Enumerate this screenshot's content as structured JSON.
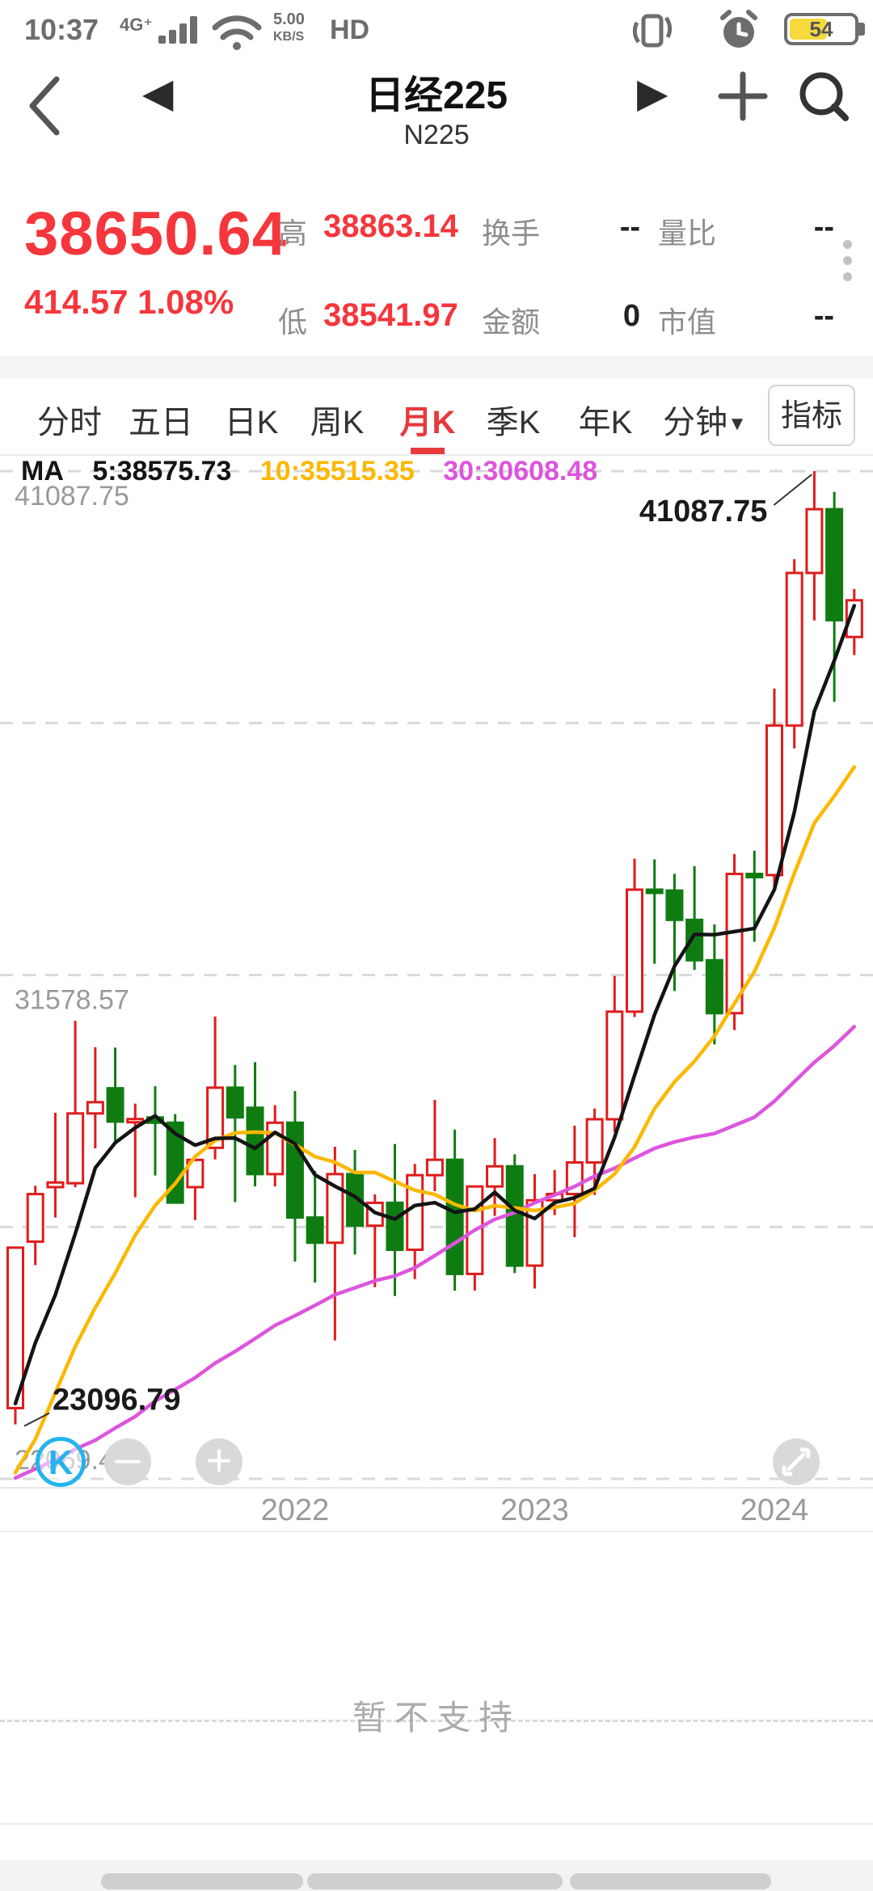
{
  "status_bar": {
    "time": "10:37",
    "network": "4G⁺",
    "speed_top": "5.00",
    "speed_bottom": "KB/S",
    "hd": "HD",
    "battery_pct": "54"
  },
  "header": {
    "title": "日经225",
    "subtitle": "N225"
  },
  "quote": {
    "price": "38650.64",
    "change": "414.57  1.08%",
    "high_label": "高",
    "high": "38863.14",
    "low_label": "低",
    "low": "38541.97",
    "turnover_label": "换手",
    "turnover": "--",
    "amount_label": "金额",
    "amount": "0",
    "volume_ratio_label": "量比",
    "volume_ratio": "--",
    "market_cap_label": "市值",
    "market_cap": "--"
  },
  "tabs": {
    "items": [
      "分时",
      "五日",
      "日K",
      "周K",
      "月K",
      "季K",
      "年K"
    ],
    "selected": "月K",
    "minute_label": "分钟",
    "indicator_label": "指标"
  },
  "footer": {
    "unsupported": "暂不支持"
  },
  "colors": {
    "red": "#f5363c",
    "candle_up": "#de1c1c",
    "candle_down": "#0f7c12",
    "ma5": "#141414",
    "ma10": "#fcb800",
    "ma30": "#dd55dd",
    "grid": "#d9d9d9",
    "axis_text": "#9a9a9a",
    "annotation_text": "#1a1a1a"
  },
  "chart_data": {
    "type": "candlestick",
    "title": "日经225 (N225) 月K",
    "ma_legend": {
      "prefix": "MA",
      "ma5": "5:38575.73",
      "ma10": "10:35515.35",
      "ma30": "30:30608.48"
    },
    "y_axis": {
      "max": 41087.75,
      "min": 22069.4,
      "gridlines": [
        41087.75,
        36333.16,
        31578.57,
        26823.98,
        22069.4
      ],
      "labels": [
        {
          "value": 41087.75,
          "text": "41087.75",
          "pos": "below"
        },
        {
          "value": 31578.57,
          "text": "31578.57",
          "pos": "below"
        },
        {
          "value": 22069.4,
          "text": "22069.40",
          "pos": "above"
        }
      ]
    },
    "x_ticks": [
      {
        "label": "2022",
        "index": 14
      },
      {
        "label": "2023",
        "index": 26
      },
      {
        "label": "2024",
        "index": 38
      }
    ],
    "annotations": [
      {
        "type": "high",
        "text": "41087.75",
        "index": 40
      },
      {
        "type": "low",
        "text": "23096.79",
        "index": 0
      }
    ],
    "months": [
      "2020-11",
      "2020-12",
      "2021-01",
      "2021-02",
      "2021-03",
      "2021-04",
      "2021-05",
      "2021-06",
      "2021-07",
      "2021-08",
      "2021-09",
      "2021-10",
      "2021-11",
      "2021-12",
      "2022-01",
      "2022-02",
      "2022-03",
      "2022-04",
      "2022-05",
      "2022-06",
      "2022-07",
      "2022-08",
      "2022-09",
      "2022-10",
      "2022-11",
      "2022-12",
      "2023-01",
      "2023-02",
      "2023-03",
      "2023-04",
      "2023-05",
      "2023-06",
      "2023-07",
      "2023-08",
      "2023-09",
      "2023-10",
      "2023-11",
      "2023-12",
      "2024-01",
      "2024-02",
      "2024-03",
      "2024-04",
      "2024-05"
    ],
    "candles": [
      [
        23405,
        26296,
        23096.79,
        26433
      ],
      [
        26547,
        27602,
        26101,
        27444
      ],
      [
        27575,
        28979,
        27002,
        27663
      ],
      [
        27649,
        30714,
        27573,
        28966
      ],
      [
        28966,
        30216,
        28308,
        29178
      ],
      [
        29441,
        30208,
        28419,
        28812
      ],
      [
        28812,
        29152,
        27385,
        28860
      ],
      [
        28890,
        29480,
        27795,
        28791
      ],
      [
        28791,
        28954,
        27283,
        27283
      ],
      [
        27575,
        28070,
        26954,
        28089
      ],
      [
        28317,
        30795,
        28100,
        29452
      ],
      [
        29452,
        29880,
        27293,
        28892
      ],
      [
        29073,
        29933,
        27588,
        27821
      ],
      [
        27821,
        29121,
        27588,
        28791
      ],
      [
        28791,
        29388,
        26170,
        27001
      ],
      [
        27001,
        27880,
        25775,
        26526
      ],
      [
        26526,
        28338,
        24681,
        27821
      ],
      [
        27821,
        28279,
        26304,
        26847
      ],
      [
        26847,
        27437,
        25688,
        27279
      ],
      [
        27279,
        28389,
        25520,
        26393
      ],
      [
        26393,
        28014,
        25841,
        27801
      ],
      [
        27801,
        29222,
        27499,
        28091
      ],
      [
        28091,
        28659,
        25621,
        25937
      ],
      [
        25937,
        27587,
        25621,
        27587
      ],
      [
        27587,
        28502,
        27032,
        27968
      ],
      [
        27968,
        28195,
        25953,
        26094
      ],
      [
        26094,
        27821,
        25661,
        27327
      ],
      [
        27327,
        27898,
        27046,
        27445
      ],
      [
        27445,
        28734,
        26632,
        28041
      ],
      [
        28041,
        29058,
        27427,
        28856
      ],
      [
        28856,
        31560,
        28616,
        30887
      ],
      [
        30887,
        33772,
        30785,
        33189
      ],
      [
        33189,
        33762,
        31791,
        33172
      ],
      [
        33172,
        33488,
        31275,
        32619
      ],
      [
        32619,
        33634,
        31674,
        31857
      ],
      [
        31857,
        32533,
        30269,
        30858
      ],
      [
        30858,
        33861,
        30538,
        33486
      ],
      [
        33486,
        33924,
        32205,
        33464
      ],
      [
        33464,
        36984,
        33215,
        36286
      ],
      [
        36286,
        39426,
        35854,
        39166
      ],
      [
        39166,
        41087.75,
        38271,
        40369
      ],
      [
        40369,
        40697,
        36733,
        38274
      ],
      [
        37958,
        38863.14,
        37617,
        38650.64
      ]
    ],
    "ma_periods": [
      5,
      10,
      30
    ],
    "ma_seed_closes": [
      22305,
      22554,
      22865,
      24120,
      21920,
      22351,
      20015,
      20773,
      21385,
      21206,
      22259,
      20601,
      21276,
      21522,
      20704,
      21756,
      22927,
      23294,
      23657,
      23205,
      21143,
      18917,
      20194,
      21878,
      22288,
      21710,
      23140,
      23185,
      22977
    ]
  }
}
